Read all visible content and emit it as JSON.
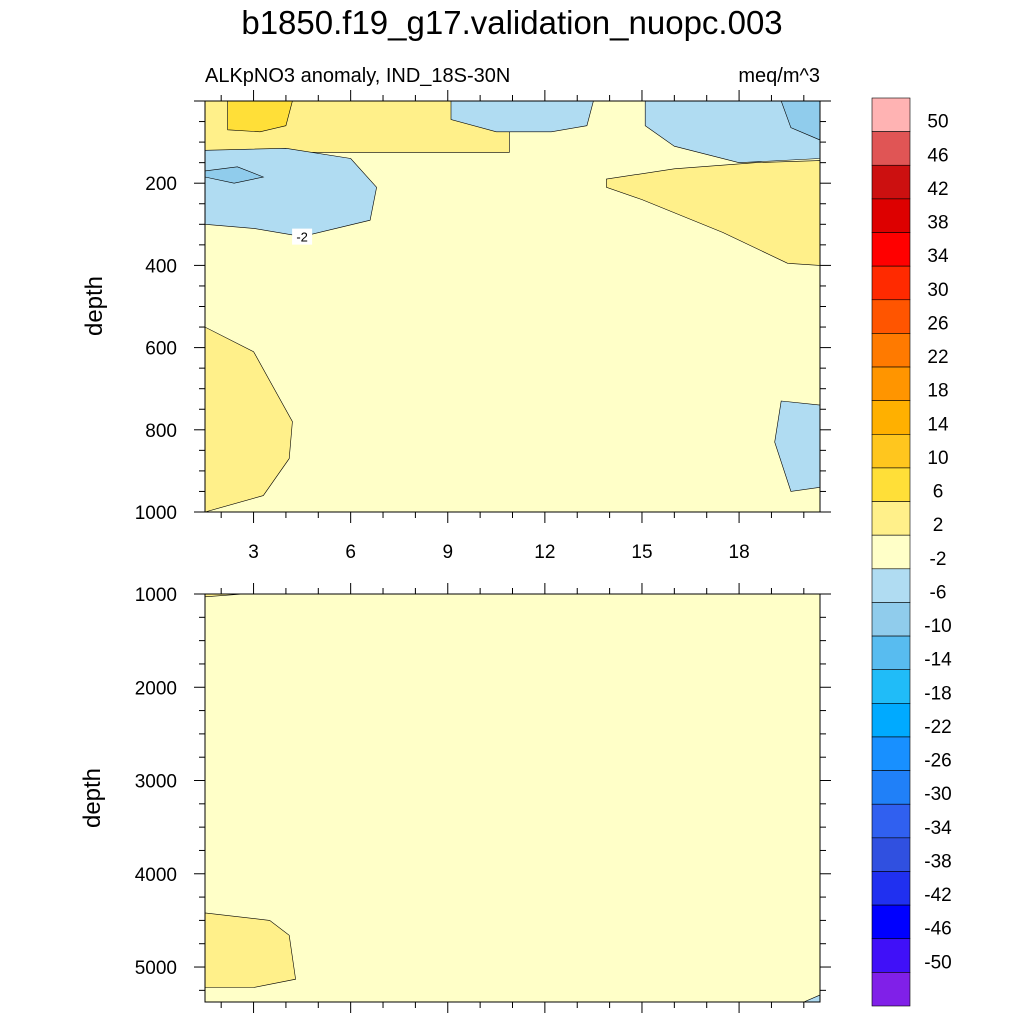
{
  "chart_data": {
    "type": "contour",
    "title": "b1850.f19_g17.validation_nuopc.003",
    "left_subtitle": "ALKpNO3 anomaly, IND_18S-30N",
    "right_subtitle": "meq/m^3",
    "ylabel": "depth",
    "x_ticks": [
      "3",
      "6",
      "9",
      "12",
      "15",
      "18"
    ],
    "x_range": [
      1.5,
      20.5
    ],
    "panels": [
      {
        "name": "upper",
        "ylim": [
          0,
          1000
        ],
        "y_ticks": [
          "200",
          "400",
          "600",
          "800",
          "1000"
        ],
        "background_level": "-2 to 2",
        "regions": [
          {
            "level": "2 to 6",
            "points": [
              [
                1.5,
                0
              ],
              [
                10.9,
                0
              ],
              [
                10.9,
                125
              ],
              [
                1.5,
                125
              ]
            ]
          },
          {
            "level": "6 to 10",
            "points": [
              [
                2.2,
                0
              ],
              [
                4.2,
                0
              ],
              [
                4.0,
                60
              ],
              [
                3.2,
                75
              ],
              [
                2.2,
                70
              ]
            ]
          },
          {
            "level": "-2 to -6",
            "points": [
              [
                1.5,
                120
              ],
              [
                4,
                115
              ],
              [
                6,
                140
              ],
              [
                6.8,
                210
              ],
              [
                6.6,
                290
              ],
              [
                4.5,
                330
              ],
              [
                3,
                310
              ],
              [
                1.5,
                300
              ]
            ]
          },
          {
            "level": "-6 to -10",
            "points": [
              [
                1.5,
                170
              ],
              [
                2.5,
                160
              ],
              [
                3.3,
                185
              ],
              [
                2.4,
                200
              ],
              [
                1.5,
                185
              ]
            ]
          },
          {
            "level": "-2 to -6",
            "points": [
              [
                9.1,
                0
              ],
              [
                13.5,
                0
              ],
              [
                13.3,
                60
              ],
              [
                12.2,
                75
              ],
              [
                10.5,
                75
              ],
              [
                9.1,
                45
              ]
            ]
          },
          {
            "level": "-2 to -6",
            "points": [
              [
                15.1,
                0
              ],
              [
                20.5,
                0
              ],
              [
                20.5,
                140
              ],
              [
                18,
                150
              ],
              [
                16,
                110
              ],
              [
                15.1,
                60
              ]
            ]
          },
          {
            "level": "-6 to -10",
            "points": [
              [
                19.3,
                0
              ],
              [
                20.5,
                0
              ],
              [
                20.5,
                95
              ],
              [
                19.6,
                65
              ]
            ]
          },
          {
            "level": "2 to 6",
            "points": [
              [
                13.9,
                190
              ],
              [
                16,
                165
              ],
              [
                18.5,
                150
              ],
              [
                20.5,
                145
              ],
              [
                20.5,
                400
              ],
              [
                19.5,
                395
              ],
              [
                17.5,
                320
              ],
              [
                15,
                240
              ],
              [
                13.9,
                210
              ]
            ]
          },
          {
            "level": "2 to 6",
            "points": [
              [
                1.5,
                550
              ],
              [
                3,
                610
              ],
              [
                4.2,
                780
              ],
              [
                4.1,
                870
              ],
              [
                3.3,
                960
              ],
              [
                1.5,
                1000
              ]
            ]
          },
          {
            "level": "-2 to -6",
            "points": [
              [
                19.3,
                730
              ],
              [
                20.5,
                740
              ],
              [
                20.5,
                940
              ],
              [
                19.6,
                950
              ],
              [
                19.1,
                830
              ]
            ]
          }
        ],
        "contour_labels": [
          {
            "text": "-2",
            "x": 4.5,
            "y": 330
          }
        ]
      },
      {
        "name": "lower",
        "ylim": [
          1000,
          5375
        ],
        "y_ticks": [
          "1000",
          "2000",
          "3000",
          "4000",
          "5000"
        ],
        "background_level": "-2 to 2",
        "regions": [
          {
            "level": "2 to 6",
            "points": [
              [
                1.5,
                1000
              ],
              [
                2.7,
                1000
              ],
              [
                1.5,
                1030
              ]
            ]
          },
          {
            "level": "2 to 6",
            "points": [
              [
                1.5,
                4420
              ],
              [
                3.5,
                4500
              ],
              [
                4.1,
                4660
              ],
              [
                4.3,
                5130
              ],
              [
                3.0,
                5220
              ],
              [
                1.5,
                5220
              ]
            ]
          },
          {
            "level": "-2 to -6",
            "points": [
              [
                20,
                5375
              ],
              [
                20.5,
                5300
              ],
              [
                20.5,
                5375
              ]
            ]
          }
        ],
        "contour_labels": []
      }
    ],
    "colorbar": {
      "labels": [
        "50",
        "46",
        "42",
        "38",
        "34",
        "30",
        "26",
        "22",
        "18",
        "14",
        "10",
        "6",
        "2",
        "-2",
        "-6",
        "-10",
        "-14",
        "-18",
        "-22",
        "-26",
        "-30",
        "-34",
        "-38",
        "-42",
        "-46",
        "-50"
      ],
      "colors": [
        "#FFB3B3",
        "#E05555",
        "#CC1010",
        "#DD0000",
        "#FF0000",
        "#FF2A00",
        "#FF5500",
        "#FF7A00",
        "#FF9500",
        "#FFB000",
        "#FFC61E",
        "#FFDF38",
        "#FFF08A",
        "#FFFFC8",
        "#B0DCF2",
        "#90CCEC",
        "#58BCF0",
        "#20BCF8",
        "#00AAFF",
        "#1890FF",
        "#2080F8",
        "#3060F0",
        "#3050E0",
        "#2030F0",
        "#0000FF",
        "#4010F8",
        "#8020E8"
      ]
    }
  }
}
